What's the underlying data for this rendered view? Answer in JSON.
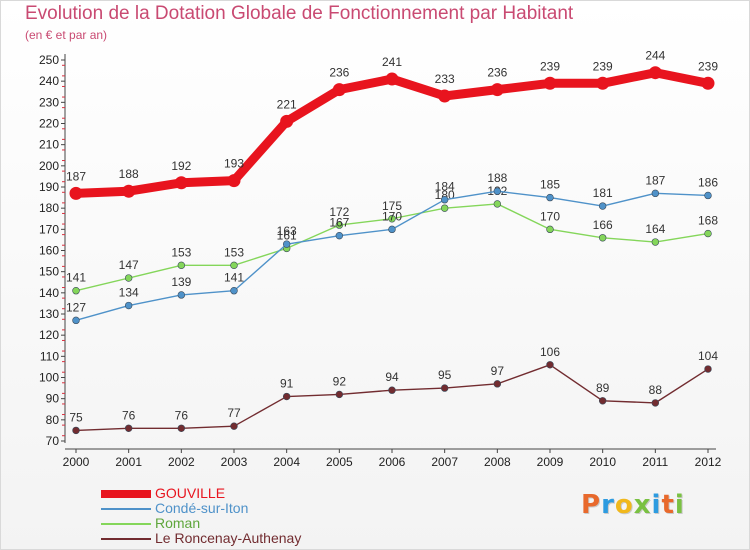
{
  "header": {
    "title": "Evolution de la Dotation Globale de Fonctionnement par Habitant",
    "subtitle": "(en € et par an)"
  },
  "logo": {
    "text": "Proxiti",
    "colors": [
      "#e8692c",
      "#2d9be0",
      "#f1b81c",
      "#7ac142",
      "#2d9be0",
      "#e8692c",
      "#7ac142"
    ]
  },
  "chart_data": {
    "type": "line",
    "title": "Evolution de la Dotation Globale de Fonctionnement par Habitant",
    "subtitle": "(en € et par an)",
    "xlabel": "",
    "ylabel": "",
    "categories": [
      "2000",
      "2001",
      "2002",
      "2003",
      "2004",
      "2005",
      "2006",
      "2007",
      "2008",
      "2009",
      "2010",
      "2011",
      "2012"
    ],
    "yticks": [
      70,
      80,
      90,
      100,
      110,
      120,
      130,
      140,
      150,
      160,
      170,
      180,
      190,
      200,
      210,
      220,
      230,
      240,
      250
    ],
    "ylim": [
      70,
      250
    ],
    "grid": false,
    "legend_position": "bottom-left",
    "series": [
      {
        "name": "GOUVILLE",
        "color": "#e8141e",
        "values": [
          187,
          188,
          192,
          193,
          221,
          236,
          241,
          233,
          236,
          239,
          239,
          244,
          239
        ]
      },
      {
        "name": "Condé-sur-Iton",
        "color": "#4f92c9",
        "values": [
          127,
          134,
          139,
          141,
          163,
          167,
          170,
          184,
          188,
          185,
          181,
          187,
          186
        ]
      },
      {
        "name": "Roman",
        "color": "#84d65a",
        "values": [
          141,
          147,
          153,
          153,
          161,
          172,
          175,
          180,
          182,
          170,
          166,
          164,
          168
        ]
      },
      {
        "name": "Le Roncenay-Authenay",
        "color": "#722c30",
        "values": [
          75,
          76,
          76,
          77,
          91,
          92,
          94,
          95,
          97,
          106,
          89,
          88,
          104
        ]
      }
    ]
  }
}
